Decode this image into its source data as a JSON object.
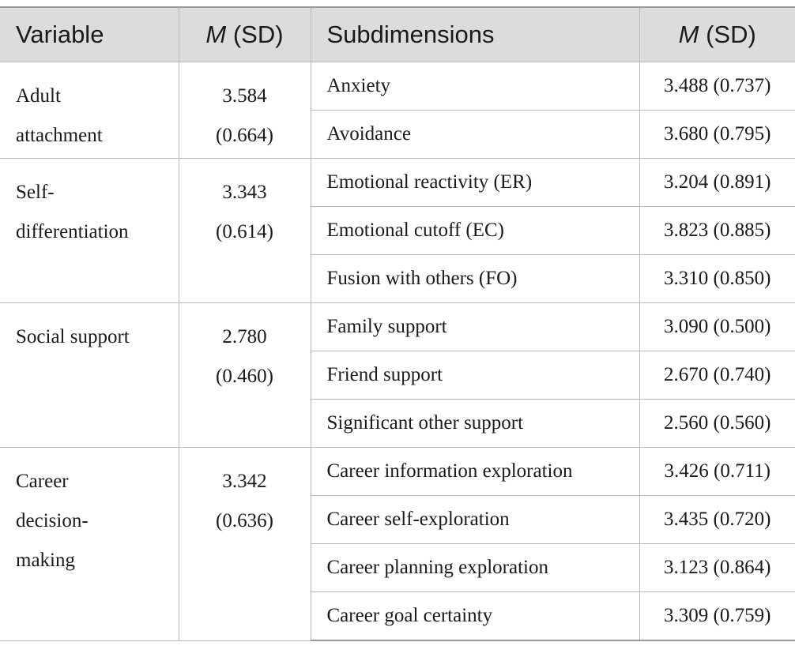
{
  "headers": {
    "variable": "Variable",
    "msd_italic": "M",
    "msd_rest": " (SD)",
    "subdimensions": "Subdimensions"
  },
  "groups": [
    {
      "variable_lines": [
        "Adult",
        "attachment"
      ],
      "mean": "3.584",
      "sd": "(0.664)",
      "subs": [
        {
          "name": "Anxiety",
          "value": "3.488 (0.737)"
        },
        {
          "name": "Avoidance",
          "value": "3.680 (0.795)"
        }
      ]
    },
    {
      "variable_lines": [
        "Self-",
        "differentiation"
      ],
      "mean": "3.343",
      "sd": "(0.614)",
      "subs": [
        {
          "name": "Emotional reactivity (ER)",
          "value": "3.204 (0.891)"
        },
        {
          "name": "Emotional cutoff (EC)",
          "value": "3.823 (0.885)"
        },
        {
          "name": "Fusion with others (FO)",
          "value": "3.310 (0.850)"
        }
      ]
    },
    {
      "variable_lines": [
        "Social support"
      ],
      "mean": "2.780",
      "sd": "(0.460)",
      "subs": [
        {
          "name": "Family support",
          "value": "3.090 (0.500)"
        },
        {
          "name": "Friend support",
          "value": "2.670 (0.740)"
        },
        {
          "name": "Significant other support",
          "value": "2.560 (0.560)"
        }
      ]
    },
    {
      "variable_lines": [
        "Career",
        "decision-",
        "making"
      ],
      "mean": "3.342",
      "sd": "(0.636)",
      "subs": [
        {
          "name": "Career information exploration",
          "value": "3.426 (0.711)"
        },
        {
          "name": "Career self-exploration",
          "value": "3.435 (0.720)"
        },
        {
          "name": "Career planning exploration",
          "value": "3.123 (0.864)"
        },
        {
          "name": "Career goal certainty",
          "value": "3.309 (0.759)"
        }
      ]
    }
  ]
}
